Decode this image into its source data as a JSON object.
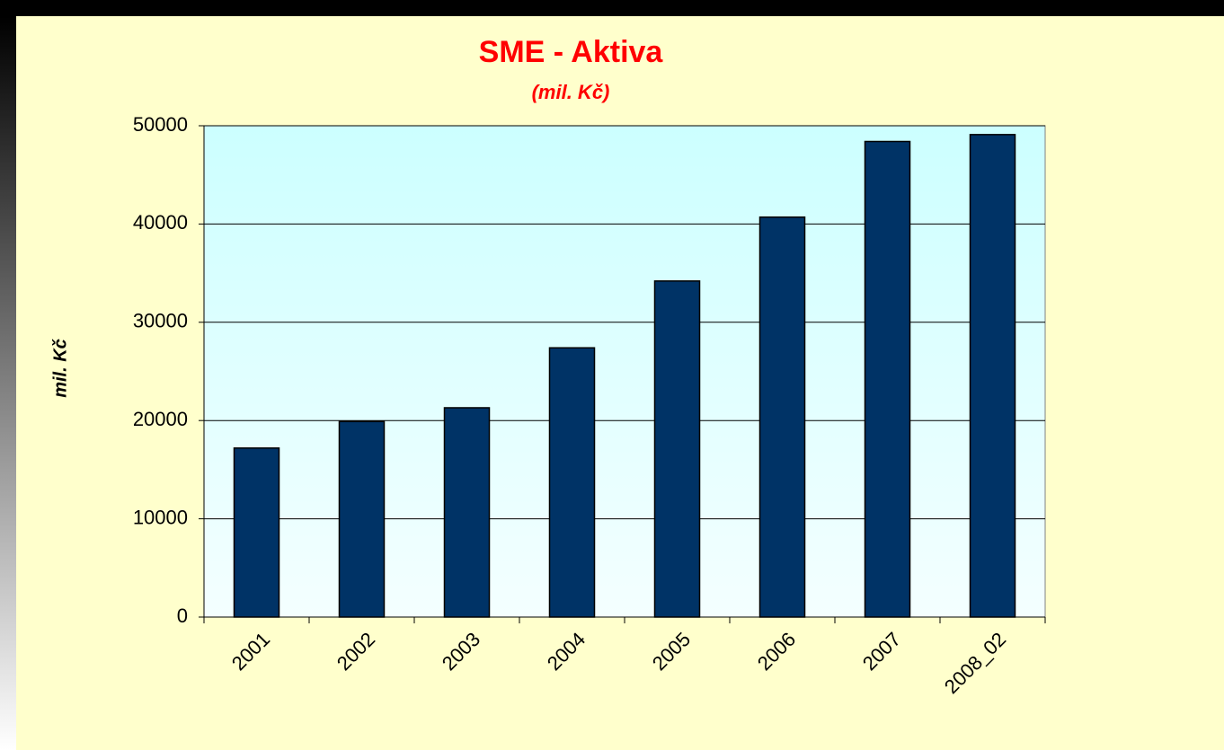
{
  "chart_data": {
    "type": "bar",
    "title": "SME - Aktiva",
    "subtitle": "(mil. Kč)",
    "y_label": "mil. Kč",
    "categories": [
      "2001",
      "2002",
      "2003",
      "2004",
      "2005",
      "2006",
      "2007",
      "2008_02"
    ],
    "values": [
      17200,
      19900,
      21300,
      27400,
      34200,
      40700,
      48400,
      49100
    ],
    "color": "#003366",
    "ylim": [
      0,
      50000
    ],
    "yticks": [
      0,
      10000,
      20000,
      30000,
      40000,
      50000
    ],
    "grid": true
  }
}
